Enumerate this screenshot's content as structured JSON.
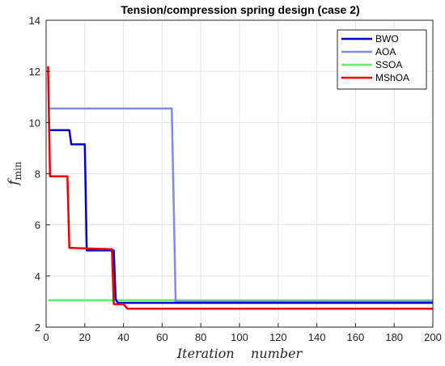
{
  "chart_data": {
    "type": "line",
    "title": "Tension/compression spring design (case 2)",
    "xlabel": "Iteration    number",
    "ylabel_main": "f",
    "ylabel_sub": "min",
    "xlim": [
      0,
      200
    ],
    "ylim": [
      2,
      14
    ],
    "xticks": [
      0,
      20,
      40,
      60,
      80,
      100,
      120,
      140,
      160,
      180,
      200
    ],
    "yticks": [
      2,
      4,
      6,
      8,
      10,
      12,
      14
    ],
    "grid": true,
    "legend_position": "top-right",
    "series": [
      {
        "name": "BWO",
        "color": "#0000cc",
        "points": [
          [
            1,
            9.7
          ],
          [
            12,
            9.7
          ],
          [
            13,
            9.15
          ],
          [
            19,
            9.15
          ],
          [
            20,
            9.15
          ],
          [
            21,
            5.0
          ],
          [
            35,
            5.0
          ],
          [
            36,
            3.1
          ],
          [
            37,
            2.95
          ],
          [
            200,
            2.95
          ]
        ]
      },
      {
        "name": "AOA",
        "color": "#7f8af0",
        "points": [
          [
            1,
            10.55
          ],
          [
            65,
            10.55
          ],
          [
            67,
            3.0
          ],
          [
            200,
            3.0
          ]
        ]
      },
      {
        "name": "SSOA",
        "color": "#66ee66",
        "points": [
          [
            1,
            3.05
          ],
          [
            200,
            3.05
          ]
        ]
      },
      {
        "name": "MShOA",
        "color": "#ee0000",
        "points": [
          [
            1,
            12.2
          ],
          [
            2,
            7.9
          ],
          [
            11,
            7.9
          ],
          [
            12,
            5.1
          ],
          [
            33,
            5.05
          ],
          [
            34,
            5.05
          ],
          [
            35,
            2.9
          ],
          [
            40,
            2.9
          ],
          [
            42,
            2.72
          ],
          [
            200,
            2.72
          ]
        ]
      }
    ]
  }
}
